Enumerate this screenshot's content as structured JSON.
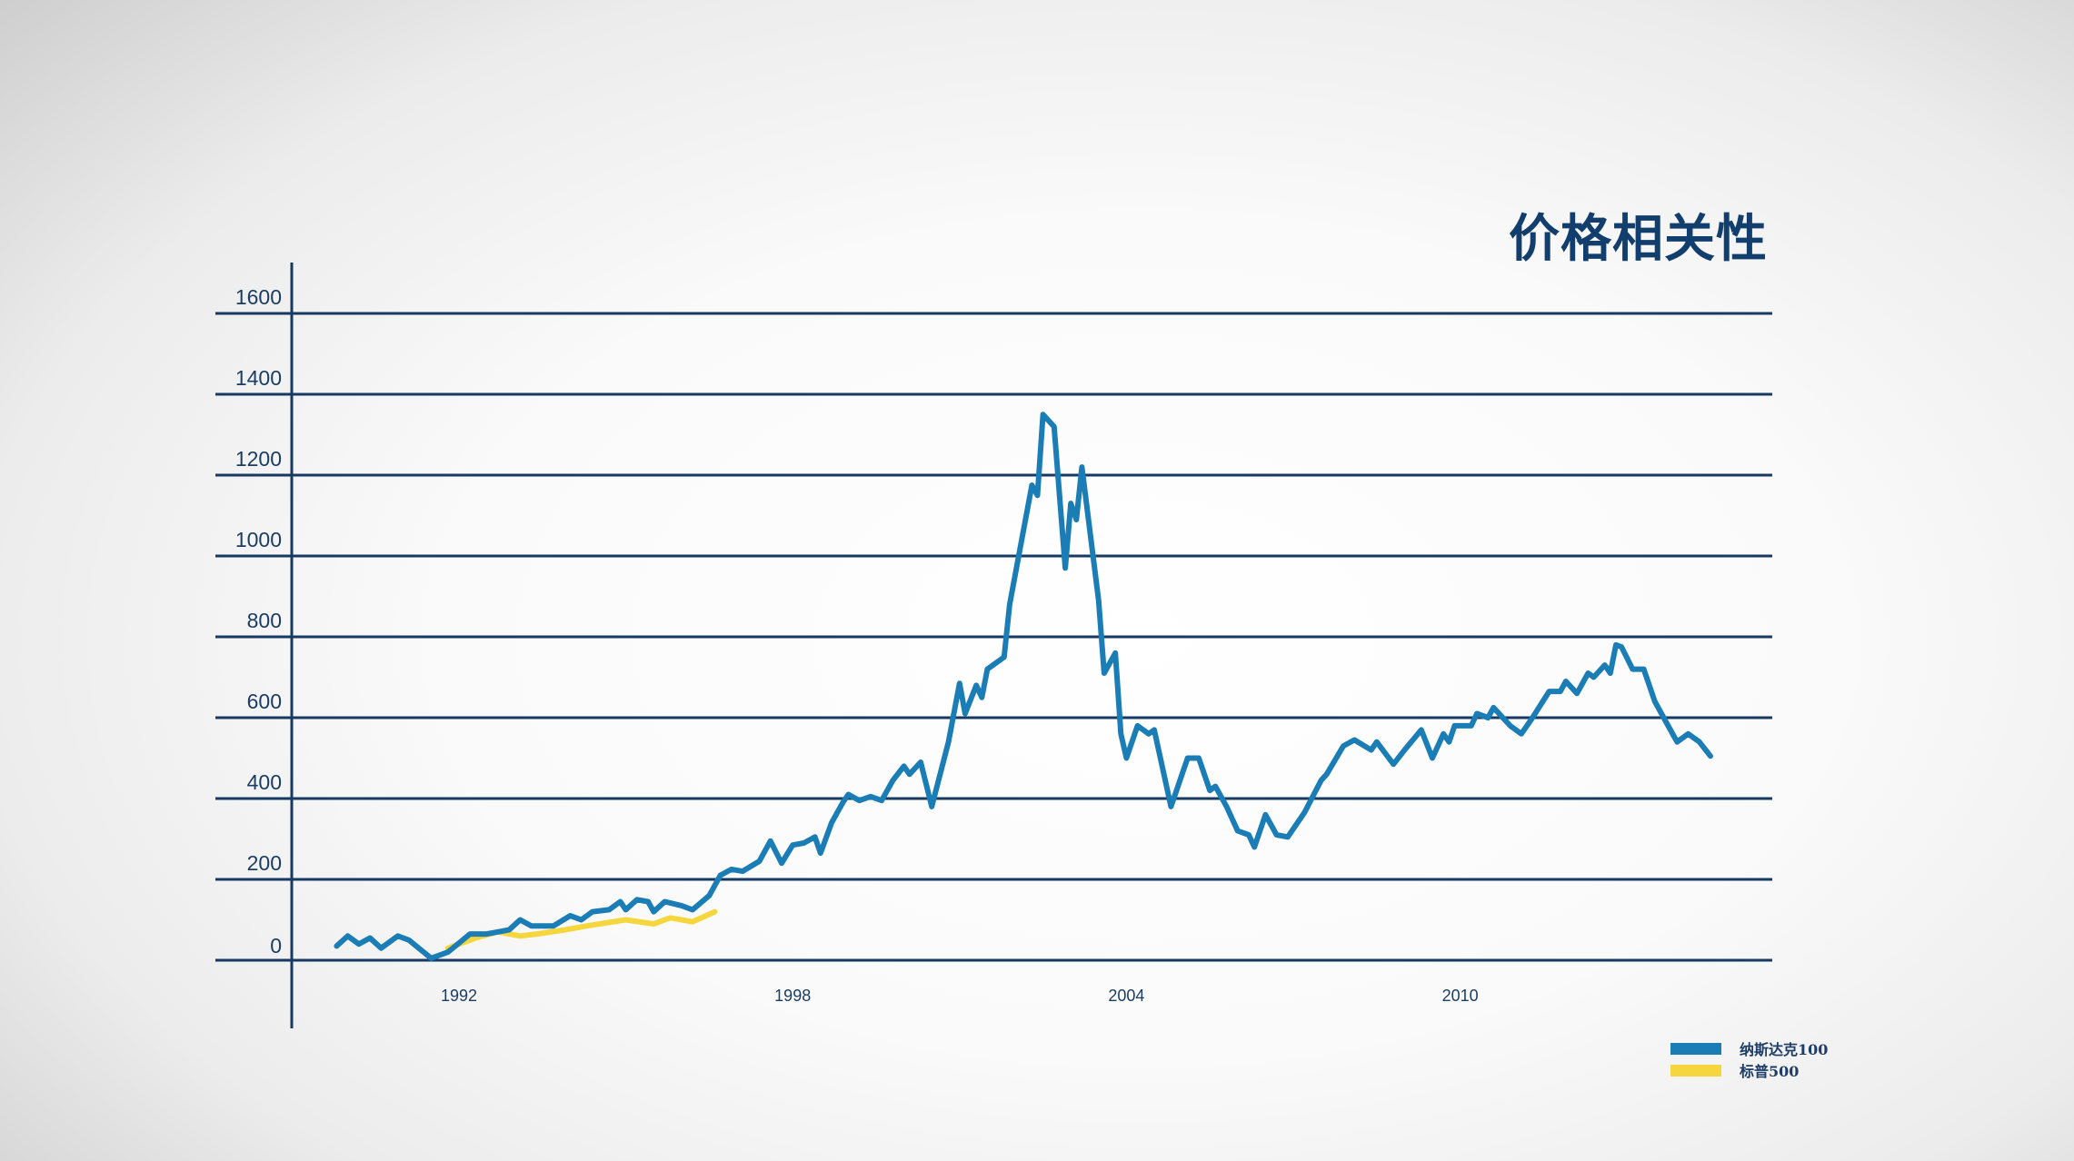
{
  "title": "价格相关性",
  "legend": [
    {
      "label": "纳斯达克100",
      "color": "#1a7db5"
    },
    {
      "label": "标普500",
      "color": "#f5d63d"
    }
  ],
  "colors": {
    "gridline": "#173a63",
    "axis": "#173a63",
    "nasdaq": "#1a7db5",
    "sp500": "#f5d63d",
    "title": "#123e6e"
  },
  "chart_data": {
    "type": "line",
    "title": "价格相关性",
    "xlabel": "",
    "ylabel": "",
    "ylim": [
      0,
      1600
    ],
    "yticks": [
      0,
      200,
      400,
      600,
      800,
      1000,
      1200,
      1400,
      1600
    ],
    "xticks": [
      1992,
      1998,
      2004,
      2010
    ],
    "xlim": [
      1989.4,
      2016.1
    ],
    "grid": true,
    "legend_position": "bottom-right",
    "series": [
      {
        "name": "纳斯达克100",
        "color": "#1a7db5",
        "points": [
          [
            1989.8,
            35
          ],
          [
            1990.0,
            60
          ],
          [
            1990.2,
            40
          ],
          [
            1990.4,
            55
          ],
          [
            1990.6,
            30
          ],
          [
            1990.9,
            60
          ],
          [
            1991.1,
            50
          ],
          [
            1991.5,
            5
          ],
          [
            1991.8,
            20
          ],
          [
            1992.2,
            65
          ],
          [
            1992.5,
            65
          ],
          [
            1992.9,
            75
          ],
          [
            1993.1,
            100
          ],
          [
            1993.3,
            85
          ],
          [
            1993.7,
            85
          ],
          [
            1994.0,
            110
          ],
          [
            1994.2,
            100
          ],
          [
            1994.4,
            120
          ],
          [
            1994.7,
            125
          ],
          [
            1994.9,
            145
          ],
          [
            1995.0,
            125
          ],
          [
            1995.2,
            150
          ],
          [
            1995.4,
            145
          ],
          [
            1995.5,
            120
          ],
          [
            1995.7,
            145
          ],
          [
            1996.0,
            135
          ],
          [
            1996.2,
            125
          ],
          [
            1996.5,
            160
          ],
          [
            1996.7,
            210
          ],
          [
            1996.9,
            225
          ],
          [
            1997.1,
            220
          ],
          [
            1997.4,
            245
          ],
          [
            1997.6,
            295
          ],
          [
            1997.8,
            240
          ],
          [
            1998.0,
            285
          ],
          [
            1998.2,
            290
          ],
          [
            1998.4,
            305
          ],
          [
            1998.5,
            265
          ],
          [
            1998.7,
            340
          ],
          [
            1998.9,
            390
          ],
          [
            1999.0,
            410
          ],
          [
            1999.2,
            395
          ],
          [
            1999.4,
            405
          ],
          [
            1999.6,
            395
          ],
          [
            1999.8,
            445
          ],
          [
            2000.0,
            480
          ],
          [
            2000.1,
            460
          ],
          [
            2000.3,
            490
          ],
          [
            2000.5,
            380
          ],
          [
            2000.8,
            540
          ],
          [
            2001.0,
            685
          ],
          [
            2001.1,
            610
          ],
          [
            2001.3,
            680
          ],
          [
            2001.4,
            650
          ],
          [
            2001.5,
            720
          ],
          [
            2001.8,
            750
          ],
          [
            2001.9,
            880
          ],
          [
            2002.3,
            1175
          ],
          [
            2002.4,
            1150
          ],
          [
            2002.5,
            1350
          ],
          [
            2002.7,
            1320
          ],
          [
            2002.9,
            970
          ],
          [
            2003.0,
            1130
          ],
          [
            2003.1,
            1090
          ],
          [
            2003.2,
            1220
          ],
          [
            2003.5,
            890
          ],
          [
            2003.6,
            710
          ],
          [
            2003.8,
            760
          ],
          [
            2003.9,
            560
          ],
          [
            2004.0,
            500
          ],
          [
            2004.2,
            580
          ],
          [
            2004.4,
            560
          ],
          [
            2004.5,
            570
          ],
          [
            2004.8,
            380
          ],
          [
            2004.9,
            420
          ],
          [
            2005.1,
            500
          ],
          [
            2005.3,
            500
          ],
          [
            2005.5,
            420
          ],
          [
            2005.6,
            430
          ],
          [
            2005.8,
            380
          ],
          [
            2006.0,
            320
          ],
          [
            2006.2,
            310
          ],
          [
            2006.3,
            280
          ],
          [
            2006.5,
            360
          ],
          [
            2006.7,
            310
          ],
          [
            2006.9,
            305
          ],
          [
            2007.2,
            365
          ],
          [
            2007.5,
            445
          ],
          [
            2007.6,
            460
          ],
          [
            2007.9,
            530
          ],
          [
            2008.1,
            545
          ],
          [
            2008.4,
            520
          ],
          [
            2008.5,
            540
          ],
          [
            2008.8,
            485
          ],
          [
            2009.0,
            520
          ],
          [
            2009.3,
            570
          ],
          [
            2009.5,
            500
          ],
          [
            2009.7,
            560
          ],
          [
            2009.8,
            540
          ],
          [
            2009.9,
            580
          ],
          [
            2010.2,
            580
          ],
          [
            2010.3,
            610
          ],
          [
            2010.5,
            600
          ],
          [
            2010.6,
            625
          ],
          [
            2010.9,
            580
          ],
          [
            2011.1,
            560
          ],
          [
            2011.3,
            600
          ],
          [
            2011.6,
            665
          ],
          [
            2011.8,
            665
          ],
          [
            2011.9,
            690
          ],
          [
            2012.1,
            660
          ],
          [
            2012.3,
            710
          ],
          [
            2012.4,
            700
          ],
          [
            2012.6,
            730
          ],
          [
            2012.7,
            710
          ],
          [
            2012.8,
            780
          ],
          [
            2012.9,
            775
          ],
          [
            2013.1,
            720
          ],
          [
            2013.3,
            720
          ],
          [
            2013.5,
            640
          ],
          [
            2013.7,
            590
          ],
          [
            2013.9,
            540
          ],
          [
            2014.1,
            560
          ],
          [
            2014.3,
            540
          ],
          [
            2014.5,
            505
          ]
        ]
      },
      {
        "name": "标普500",
        "color": "#f5d63d",
        "points": [
          [
            1991.8,
            30
          ],
          [
            1992.3,
            55
          ],
          [
            1992.7,
            70
          ],
          [
            1993.1,
            60
          ],
          [
            1993.4,
            65
          ],
          [
            1993.9,
            75
          ],
          [
            1994.3,
            85
          ],
          [
            1995.0,
            100
          ],
          [
            1995.5,
            90
          ],
          [
            1995.8,
            105
          ],
          [
            1996.2,
            95
          ],
          [
            1996.6,
            120
          ]
        ]
      }
    ]
  }
}
